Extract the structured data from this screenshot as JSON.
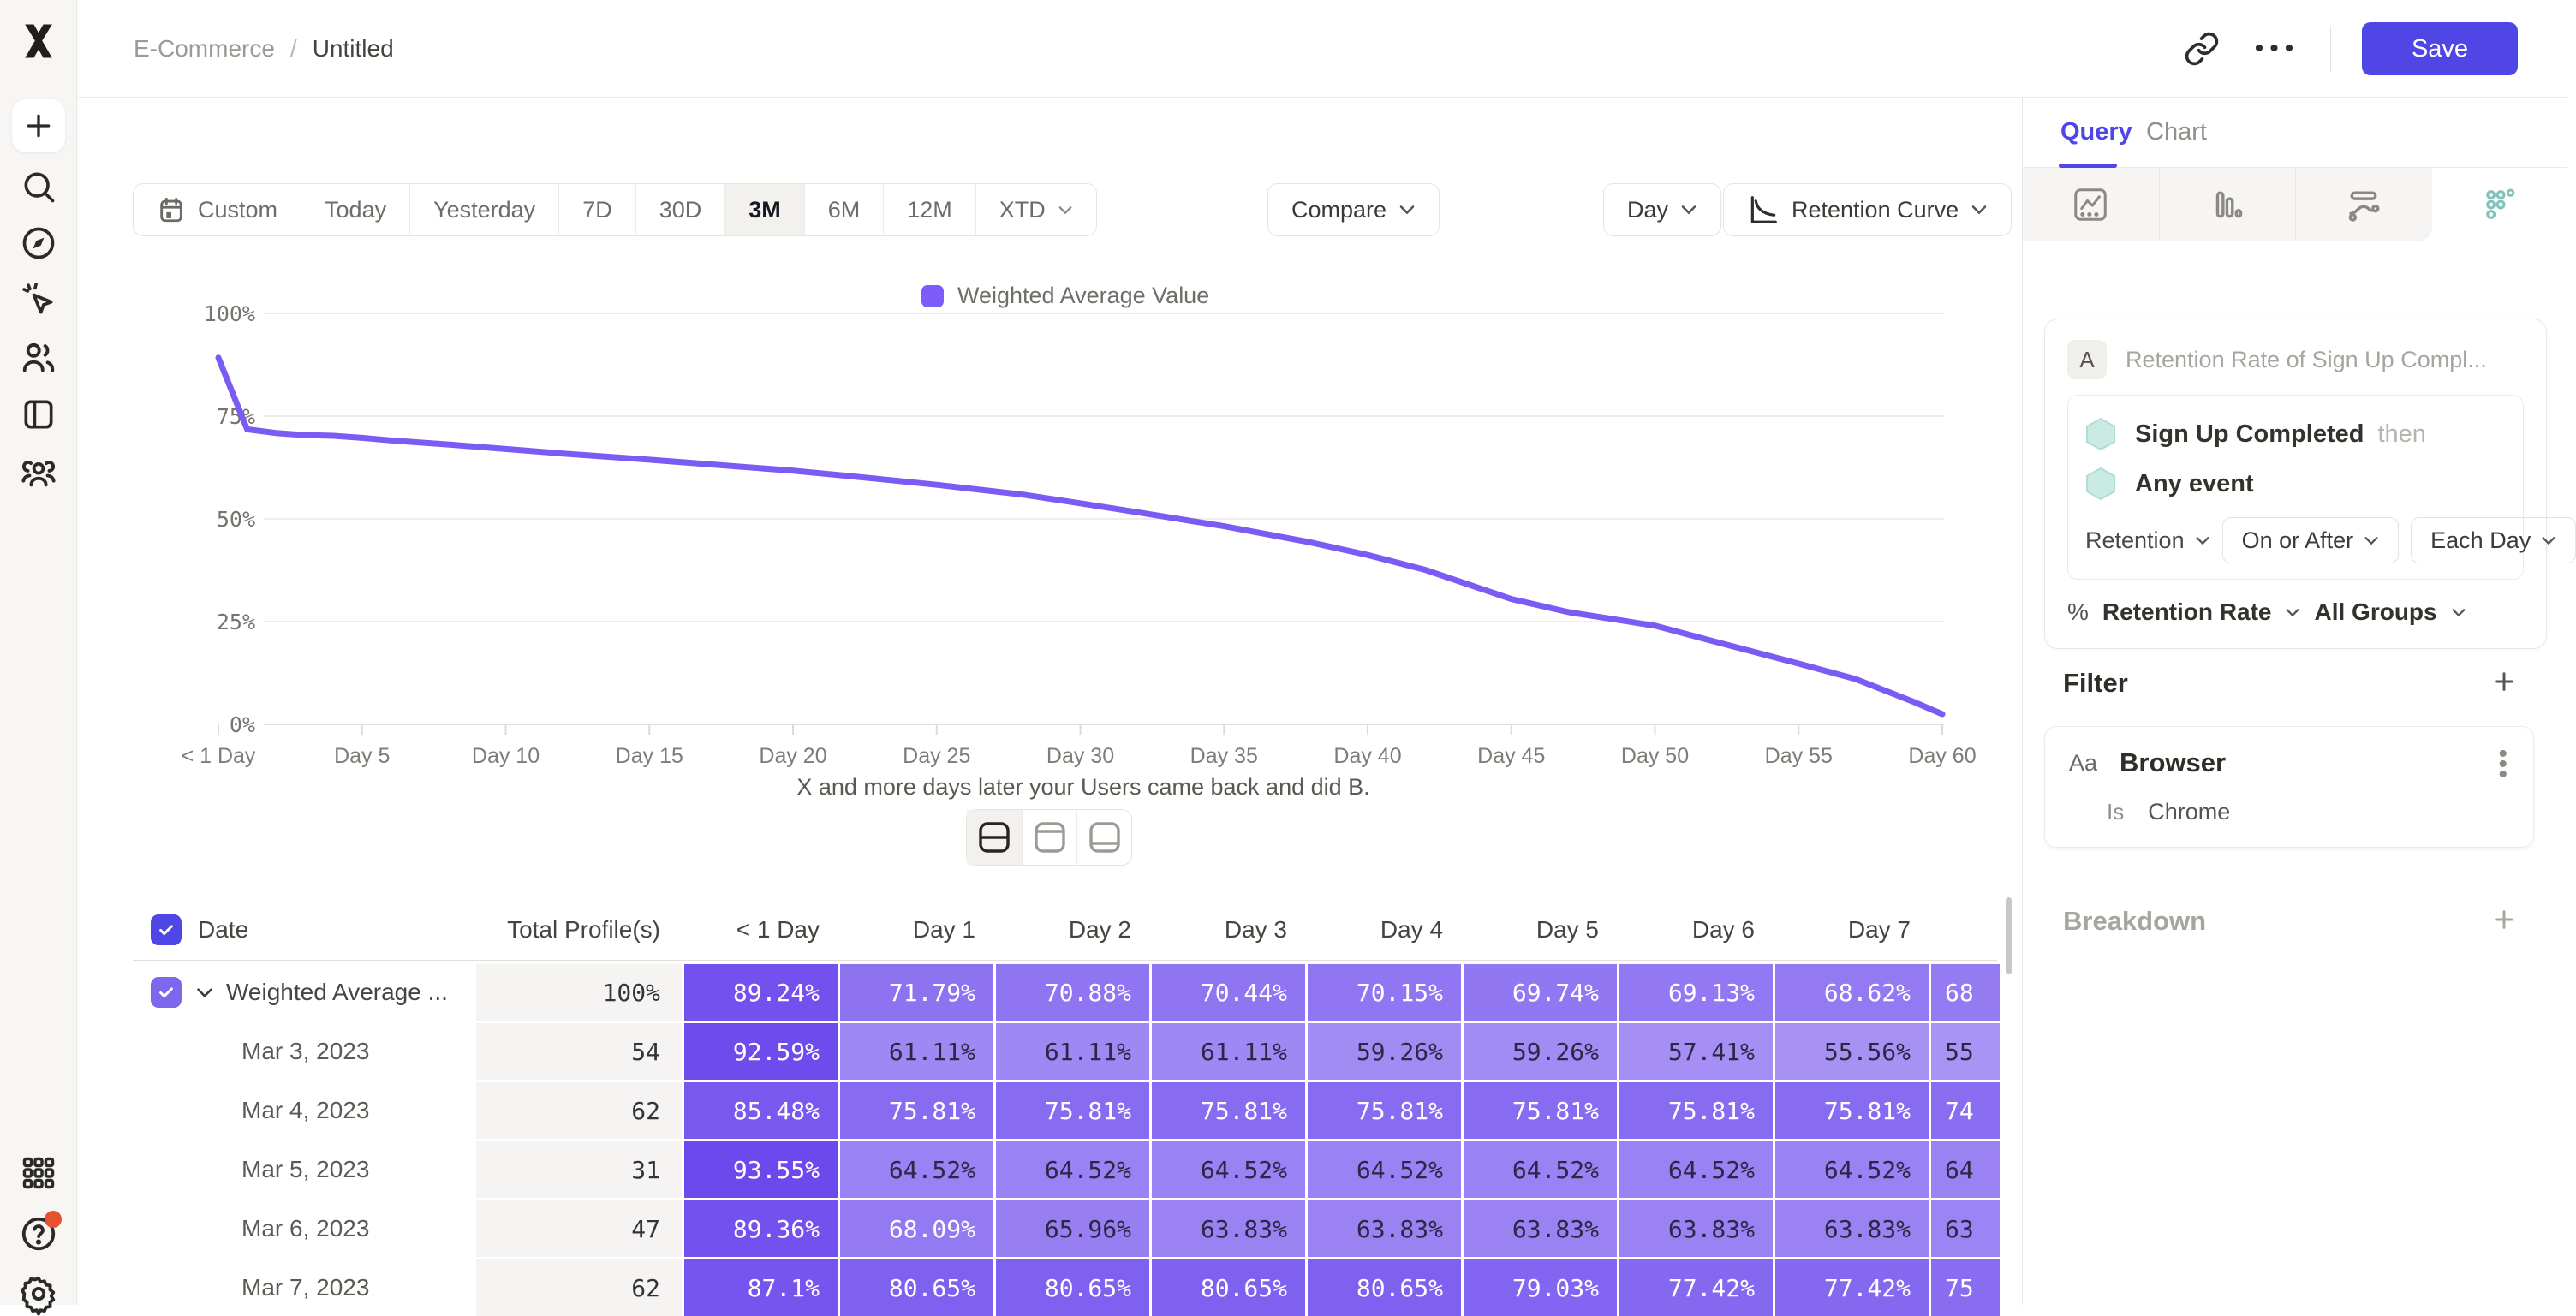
{
  "topbar": {
    "breadcrumb": {
      "root": "E-Commerce",
      "separator": "/",
      "current": "Untitled"
    },
    "more_dots": "•••",
    "save_label": "Save"
  },
  "sidebar": {
    "top_icons": [
      "logo",
      "plus-icon",
      "search-icon",
      "compass-icon",
      "cursor-click-icon",
      "users-icon",
      "notebook-icon",
      "team-icon"
    ],
    "bottom_icons": [
      "apps-grid-icon",
      "help-icon",
      "settings-icon"
    ]
  },
  "toolbar": {
    "ranges": [
      {
        "label": "Custom",
        "icon": "calendar"
      },
      {
        "label": "Today"
      },
      {
        "label": "Yesterday"
      },
      {
        "label": "7D"
      },
      {
        "label": "30D"
      },
      {
        "label": "3M",
        "selected": true
      },
      {
        "label": "6M"
      },
      {
        "label": "12M"
      },
      {
        "label": "XTD",
        "chevron": true
      }
    ],
    "selected_range": "3M",
    "compare_label": "Compare",
    "granularity_label": "Day",
    "chart_type_label": "Retention Curve"
  },
  "chart_data": {
    "type": "line",
    "legend": [
      "Weighted Average Value"
    ],
    "line_color": "#7a5cf5",
    "legend_color": "#7c5dfa",
    "ylim": [
      0,
      100
    ],
    "y_ticks": [
      {
        "pct": 100,
        "label": "100%"
      },
      {
        "pct": 75,
        "label": "75%"
      },
      {
        "pct": 50,
        "label": "50%"
      },
      {
        "pct": 25,
        "label": "25%"
      },
      {
        "pct": 0,
        "label": "0%"
      }
    ],
    "x_ticks": [
      {
        "day": 0,
        "label": "< 1 Day"
      },
      {
        "day": 5,
        "label": "Day 5"
      },
      {
        "day": 10,
        "label": "Day 10"
      },
      {
        "day": 15,
        "label": "Day 15"
      },
      {
        "day": 20,
        "label": "Day 20"
      },
      {
        "day": 25,
        "label": "Day 25"
      },
      {
        "day": 30,
        "label": "Day 30"
      },
      {
        "day": 35,
        "label": "Day 35"
      },
      {
        "day": 40,
        "label": "Day 40"
      },
      {
        "day": 45,
        "label": "Day 45"
      },
      {
        "day": 50,
        "label": "Day 50"
      },
      {
        "day": 55,
        "label": "Day 55"
      },
      {
        "day": 60,
        "label": "Day 60"
      }
    ],
    "caption": "X and more days later your Users came back and did B.",
    "series": [
      {
        "name": "Weighted Average Value",
        "points": [
          [
            0,
            89.2
          ],
          [
            1,
            71.8
          ],
          [
            2,
            70.9
          ],
          [
            3,
            70.4
          ],
          [
            4,
            70.2
          ],
          [
            5,
            69.7
          ],
          [
            6,
            69.1
          ],
          [
            7,
            68.6
          ],
          [
            8,
            68.1
          ],
          [
            10,
            67.0
          ],
          [
            12,
            65.9
          ],
          [
            15,
            64.4
          ],
          [
            18,
            62.8
          ],
          [
            20,
            61.7
          ],
          [
            22,
            60.4
          ],
          [
            25,
            58.3
          ],
          [
            28,
            55.9
          ],
          [
            30,
            53.8
          ],
          [
            32,
            51.6
          ],
          [
            35,
            48.2
          ],
          [
            38,
            44.3
          ],
          [
            40,
            41.2
          ],
          [
            42,
            37.6
          ],
          [
            45,
            30.5
          ],
          [
            47,
            27.3
          ],
          [
            50,
            24.0
          ],
          [
            52,
            20.3
          ],
          [
            55,
            14.8
          ],
          [
            57,
            11.0
          ],
          [
            59,
            5.5
          ],
          [
            60,
            2.5
          ]
        ]
      }
    ]
  },
  "layout_switcher": {
    "options": [
      "split-view",
      "top-view",
      "bottom-view"
    ],
    "active_index": 0
  },
  "table": {
    "columns": [
      "Date",
      "Total Profile(s)",
      "< 1 Day",
      "Day 1",
      "Day 2",
      "Day 3",
      "Day 4",
      "Day 5",
      "Day 6",
      "Day 7"
    ],
    "heat_base_rgb": "97,60,236",
    "rows": [
      {
        "label": "Weighted Average ...",
        "weighted": true,
        "total": "100%",
        "values": [
          "89.24%",
          "71.79%",
          "70.88%",
          "70.44%",
          "70.15%",
          "69.74%",
          "69.13%",
          "68.62%"
        ],
        "cut": "68"
      },
      {
        "label": "Mar 3, 2023",
        "total": "54",
        "values": [
          "92.59%",
          "61.11%",
          "61.11%",
          "61.11%",
          "59.26%",
          "59.26%",
          "57.41%",
          "55.56%"
        ],
        "cut": "55"
      },
      {
        "label": "Mar 4, 2023",
        "total": "62",
        "values": [
          "85.48%",
          "75.81%",
          "75.81%",
          "75.81%",
          "75.81%",
          "75.81%",
          "75.81%",
          "75.81%"
        ],
        "cut": "74"
      },
      {
        "label": "Mar 5, 2023",
        "total": "31",
        "values": [
          "93.55%",
          "64.52%",
          "64.52%",
          "64.52%",
          "64.52%",
          "64.52%",
          "64.52%",
          "64.52%"
        ],
        "cut": "64"
      },
      {
        "label": "Mar 6, 2023",
        "total": "47",
        "values": [
          "89.36%",
          "68.09%",
          "65.96%",
          "63.83%",
          "63.83%",
          "63.83%",
          "63.83%",
          "63.83%"
        ],
        "cut": "63"
      },
      {
        "label": "Mar 7, 2023",
        "total": "62",
        "values": [
          "87.1%",
          "80.65%",
          "80.65%",
          "80.65%",
          "80.65%",
          "79.03%",
          "77.42%",
          "77.42%"
        ],
        "cut": "75"
      }
    ]
  },
  "panel": {
    "tabs": {
      "active": "Query",
      "idle": "Chart"
    },
    "insight_types": [
      "line-insight-icon",
      "bar-insight-icon",
      "flow-insight-icon",
      "retention-insight-icon"
    ],
    "active_insight_index": 3,
    "query": {
      "badge": "A",
      "title": "Retention Rate of Sign Up Compl...",
      "first_event": "Sign Up Completed",
      "then_label": "then",
      "second_event": "Any event",
      "retention_dropdown": "Retention",
      "operator_dropdown": "On or After",
      "interval_dropdown": "Each Day",
      "measure_prefix": "%",
      "measure_dropdown": "Retention Rate",
      "groups_dropdown": "All Groups"
    },
    "filter": {
      "heading": "Filter",
      "add_label": "+",
      "type_badge": "Aa",
      "property": "Browser",
      "operator": "Is",
      "value": "Chrome"
    },
    "breakdown": {
      "heading": "Breakdown",
      "add_label": "+"
    }
  },
  "colors": {
    "accent": "#4f46e5",
    "teal": "#7fc4bc",
    "hex_fill": "#c9ebe4",
    "danger_dot": "#e8502f"
  }
}
